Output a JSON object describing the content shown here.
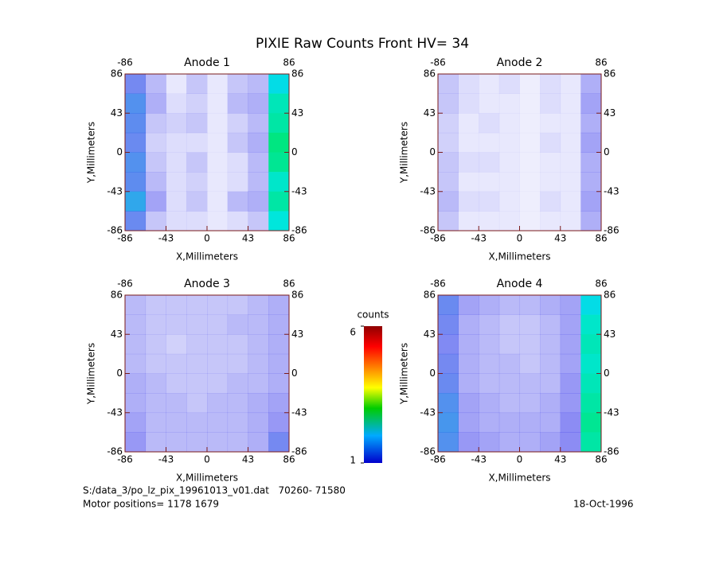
{
  "title": "PIXIE Raw Counts Front HV= 34",
  "footer": {
    "file": "S:/data_3/po_lz_pix_19961013_v01.dat   70260- 71580",
    "motor": "Motor positions= 1178 1679",
    "date": "18-Oct-1996"
  },
  "colorbar": {
    "label": "counts",
    "lim": [
      1,
      6
    ],
    "ticks": [
      1,
      6
    ]
  },
  "chart_data": [
    {
      "type": "heatmap",
      "title": "Anode 1",
      "xlabel": "X,Millimeters",
      "ylabel": "Y,Millimeters",
      "xlim": [
        -86,
        86
      ],
      "ylim": [
        -86,
        86
      ],
      "xticks": [
        -86,
        -43,
        0,
        43,
        86
      ],
      "yticks": [
        -86,
        -43,
        0,
        43,
        86
      ],
      "x2ticks": [
        -86,
        86
      ],
      "y2ticks": [
        -86,
        -43,
        0,
        43,
        86
      ],
      "values": [
        [
          1.2,
          0.6,
          0.2,
          0.5,
          0.2,
          0.5,
          0.6,
          2.2
        ],
        [
          1.5,
          0.7,
          0.3,
          0.4,
          0.2,
          0.6,
          0.7,
          2.5
        ],
        [
          1.4,
          0.5,
          0.4,
          0.5,
          0.2,
          0.4,
          0.6,
          2.6
        ],
        [
          1.3,
          0.4,
          0.3,
          0.3,
          0.2,
          0.5,
          0.7,
          2.8
        ],
        [
          1.5,
          0.5,
          0.3,
          0.5,
          0.2,
          0.3,
          0.6,
          2.7
        ],
        [
          1.4,
          0.6,
          0.3,
          0.4,
          0.2,
          0.3,
          0.6,
          2.4
        ],
        [
          1.8,
          0.8,
          0.3,
          0.5,
          0.2,
          0.6,
          0.7,
          2.6
        ],
        [
          1.3,
          0.5,
          0.3,
          0.3,
          0.2,
          0.3,
          0.5,
          2.3
        ]
      ]
    },
    {
      "type": "heatmap",
      "title": "Anode 2",
      "xlabel": "X,Millimeters",
      "ylabel": "Y,Millimeters",
      "xlim": [
        -86,
        86
      ],
      "ylim": [
        -86,
        86
      ],
      "xticks": [
        -86,
        -43,
        0,
        43,
        86
      ],
      "yticks": [
        -86,
        -43,
        0,
        43,
        86
      ],
      "x2ticks": [
        -86,
        86
      ],
      "y2ticks": [
        -86,
        -43,
        0,
        43,
        86
      ],
      "values": [
        [
          0.5,
          0.3,
          0.2,
          0.3,
          0.15,
          0.3,
          0.2,
          0.7
        ],
        [
          0.5,
          0.3,
          0.2,
          0.2,
          0.15,
          0.3,
          0.2,
          0.8
        ],
        [
          0.4,
          0.2,
          0.3,
          0.2,
          0.15,
          0.2,
          0.2,
          0.7
        ],
        [
          0.4,
          0.2,
          0.2,
          0.2,
          0.15,
          0.3,
          0.2,
          0.8
        ],
        [
          0.5,
          0.3,
          0.3,
          0.2,
          0.15,
          0.2,
          0.2,
          0.7
        ],
        [
          0.5,
          0.2,
          0.2,
          0.2,
          0.15,
          0.2,
          0.2,
          0.7
        ],
        [
          0.6,
          0.3,
          0.3,
          0.2,
          0.15,
          0.3,
          0.2,
          0.8
        ],
        [
          0.5,
          0.2,
          0.2,
          0.2,
          0.15,
          0.2,
          0.2,
          0.7
        ]
      ]
    },
    {
      "type": "heatmap",
      "title": "Anode 3",
      "xlabel": "X,Millimeters",
      "ylabel": "Y,Millimeters",
      "xlim": [
        -86,
        86
      ],
      "ylim": [
        -86,
        86
      ],
      "xticks": [
        -86,
        -43,
        0,
        43,
        86
      ],
      "yticks": [
        -86,
        -43,
        0,
        43,
        86
      ],
      "x2ticks": [
        -86,
        86
      ],
      "y2ticks": [
        -86,
        -43,
        0,
        43,
        86
      ],
      "values": [
        [
          0.6,
          0.5,
          0.5,
          0.5,
          0.5,
          0.5,
          0.6,
          0.7
        ],
        [
          0.6,
          0.5,
          0.5,
          0.5,
          0.5,
          0.6,
          0.6,
          0.7
        ],
        [
          0.6,
          0.5,
          0.4,
          0.5,
          0.5,
          0.5,
          0.6,
          0.7
        ],
        [
          0.6,
          0.5,
          0.5,
          0.5,
          0.5,
          0.5,
          0.6,
          0.7
        ],
        [
          0.7,
          0.6,
          0.5,
          0.5,
          0.5,
          0.6,
          0.6,
          0.7
        ],
        [
          0.7,
          0.6,
          0.6,
          0.5,
          0.6,
          0.6,
          0.7,
          0.8
        ],
        [
          0.8,
          0.6,
          0.6,
          0.6,
          0.6,
          0.6,
          0.7,
          0.9
        ],
        [
          0.9,
          0.6,
          0.6,
          0.6,
          0.6,
          0.6,
          0.7,
          1.2
        ]
      ]
    },
    {
      "type": "heatmap",
      "title": "Anode 4",
      "xlabel": "X,Millimeters",
      "ylabel": "Y,Millimeters",
      "xlim": [
        -86,
        86
      ],
      "ylim": [
        -86,
        86
      ],
      "xticks": [
        -86,
        -43,
        0,
        43,
        86
      ],
      "yticks": [
        -86,
        -43,
        0,
        43,
        86
      ],
      "x2ticks": [
        -86,
        86
      ],
      "y2ticks": [
        -86,
        -43,
        0,
        43,
        86
      ],
      "values": [
        [
          1.3,
          0.8,
          0.7,
          0.6,
          0.6,
          0.7,
          0.8,
          2.2
        ],
        [
          1.2,
          0.7,
          0.6,
          0.5,
          0.5,
          0.6,
          0.8,
          2.4
        ],
        [
          1.1,
          0.7,
          0.6,
          0.5,
          0.5,
          0.6,
          0.8,
          2.5
        ],
        [
          1.2,
          0.7,
          0.6,
          0.6,
          0.5,
          0.6,
          0.8,
          2.4
        ],
        [
          1.3,
          0.7,
          0.6,
          0.6,
          0.6,
          0.6,
          0.9,
          2.5
        ],
        [
          1.5,
          0.8,
          0.7,
          0.6,
          0.6,
          0.7,
          0.9,
          2.6
        ],
        [
          1.6,
          0.8,
          0.7,
          0.7,
          0.7,
          0.7,
          1.0,
          2.7
        ],
        [
          1.5,
          0.9,
          0.8,
          0.7,
          0.7,
          0.8,
          1.0,
          2.6
        ]
      ]
    }
  ]
}
